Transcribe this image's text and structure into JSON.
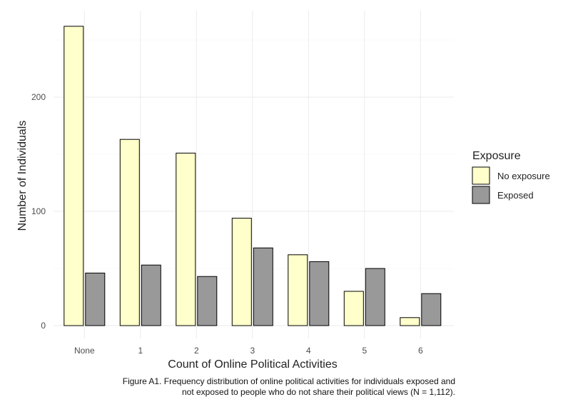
{
  "chart_data": {
    "type": "bar",
    "categories": [
      "None",
      "1",
      "2",
      "3",
      "4",
      "5",
      "6"
    ],
    "series": [
      {
        "name": "No exposure",
        "values": [
          262,
          163,
          151,
          94,
          62,
          30,
          7
        ],
        "color": "#ffffcc"
      },
      {
        "name": "Exposed",
        "values": [
          46,
          53,
          43,
          68,
          56,
          50,
          28
        ],
        "color": "#999999"
      }
    ],
    "xlabel": "Count of Online Political Activities",
    "ylabel": "Number of Individuals",
    "yticks": [
      0,
      100,
      200
    ],
    "ylim": [
      0,
      275
    ],
    "legend": {
      "title": "Exposure",
      "placement": "right"
    },
    "grid": true
  },
  "caption": {
    "line1": "Figure A1. Frequency distribution of online political activities for individuals exposed and",
    "line2": "not exposed to people who do not share their political views (N = 1,112)."
  }
}
